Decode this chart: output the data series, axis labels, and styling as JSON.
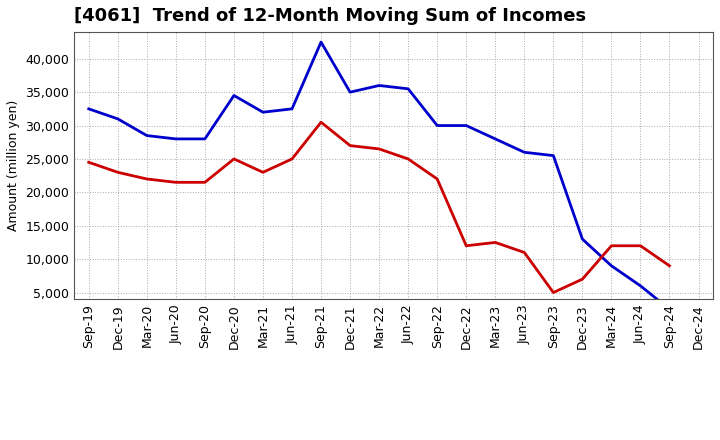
{
  "title": "[4061]  Trend of 12-Month Moving Sum of Incomes",
  "ylabel": "Amount (million yen)",
  "background_color": "#ffffff",
  "grid_color": "#aaaaaa",
  "x_labels": [
    "Sep-19",
    "Dec-19",
    "Mar-20",
    "Jun-20",
    "Sep-20",
    "Dec-20",
    "Mar-21",
    "Jun-21",
    "Sep-21",
    "Dec-21",
    "Mar-22",
    "Jun-22",
    "Sep-22",
    "Dec-22",
    "Mar-23",
    "Jun-23",
    "Sep-23",
    "Dec-23",
    "Mar-24",
    "Jun-24",
    "Sep-24",
    "Dec-24"
  ],
  "ordinary_income": [
    32500,
    31000,
    28500,
    28000,
    28000,
    34500,
    32000,
    32500,
    42500,
    35000,
    36000,
    35500,
    30000,
    30000,
    28000,
    26000,
    25500,
    13000,
    9000,
    6000,
    2500,
    null
  ],
  "net_income": [
    24500,
    23000,
    22000,
    21500,
    21500,
    25000,
    23000,
    25000,
    30500,
    27000,
    26500,
    25000,
    22000,
    12000,
    12500,
    11000,
    5000,
    7000,
    12000,
    12000,
    9000,
    null
  ],
  "ordinary_color": "#0000cc",
  "net_color": "#cc0000",
  "ylim": [
    4000,
    44000
  ],
  "yticks": [
    5000,
    10000,
    15000,
    20000,
    25000,
    30000,
    35000,
    40000
  ],
  "title_fontsize": 13,
  "axis_fontsize": 9,
  "tick_fontsize": 9,
  "legend_fontsize": 10
}
